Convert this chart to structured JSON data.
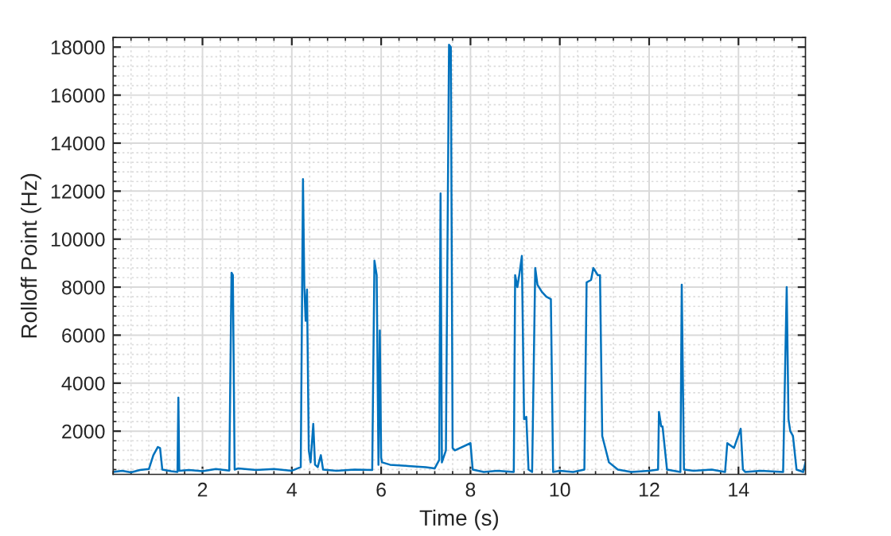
{
  "chart_data": {
    "type": "line",
    "xlabel": "Time (s)",
    "ylabel": "Rolloff Point (Hz)",
    "xlim": [
      0,
      15.5
    ],
    "ylim": [
      200,
      18400
    ],
    "xticks": [
      2,
      4,
      6,
      8,
      10,
      12,
      14
    ],
    "yticks": [
      2000,
      4000,
      6000,
      8000,
      10000,
      12000,
      14000,
      16000,
      18000
    ],
    "grid": true,
    "line_style": "solid",
    "marker": "none",
    "series": [
      {
        "color": "#0072bd",
        "x": [
          0,
          0.2,
          0.4,
          0.6,
          0.8,
          0.9,
          1.0,
          1.05,
          1.1,
          1.3,
          1.44,
          1.46,
          1.48,
          1.7,
          2.0,
          2.3,
          2.6,
          2.65,
          2.68,
          2.72,
          2.8,
          3.2,
          3.6,
          4.0,
          4.2,
          4.25,
          4.28,
          4.31,
          4.34,
          4.38,
          4.42,
          4.48,
          4.52,
          4.58,
          4.65,
          4.7,
          5.0,
          5.4,
          5.8,
          5.85,
          5.9,
          5.94,
          5.97,
          6.0,
          6.02,
          6.2,
          6.6,
          7.0,
          7.2,
          7.3,
          7.33,
          7.36,
          7.45,
          7.52,
          7.56,
          7.6,
          7.65,
          8.0,
          8.05,
          8.3,
          8.6,
          8.97,
          9.0,
          9.05,
          9.1,
          9.15,
          9.2,
          9.25,
          9.3,
          9.38,
          9.45,
          9.5,
          9.6,
          9.7,
          9.8,
          9.85,
          10.0,
          10.3,
          10.55,
          10.6,
          10.7,
          10.75,
          10.85,
          10.9,
          10.95,
          11.1,
          11.3,
          11.6,
          12.0,
          12.2,
          12.22,
          12.27,
          12.3,
          12.4,
          12.7,
          12.73,
          12.78,
          13.0,
          13.4,
          13.7,
          13.75,
          13.9,
          14.05,
          14.1,
          14.15,
          14.5,
          15.0,
          15.08,
          15.12,
          15.16,
          15.22,
          15.3,
          15.45,
          15.5
        ],
        "values": [
          300,
          350,
          280,
          380,
          420,
          1000,
          1340,
          1300,
          400,
          330,
          300,
          3400,
          350,
          380,
          330,
          420,
          360,
          8600,
          8500,
          400,
          450,
          380,
          420,
          350,
          500,
          12500,
          8000,
          6600,
          7900,
          1200,
          700,
          2300,
          600,
          500,
          1000,
          400,
          350,
          400,
          380,
          9100,
          8500,
          600,
          6200,
          900,
          700,
          600,
          550,
          500,
          450,
          800,
          11900,
          700,
          1200,
          18100,
          18000,
          1300,
          1200,
          1500,
          400,
          300,
          350,
          300,
          8500,
          8000,
          8600,
          9300,
          2500,
          2600,
          400,
          300,
          8800,
          8100,
          7800,
          7600,
          7500,
          300,
          350,
          300,
          400,
          8200,
          8300,
          8800,
          8500,
          8500,
          1800,
          700,
          400,
          300,
          350,
          400,
          2800,
          2200,
          2200,
          400,
          300,
          8100,
          400,
          350,
          400,
          300,
          1500,
          1300,
          2100,
          400,
          300,
          350,
          300,
          8000,
          2500,
          2000,
          1800,
          400,
          300,
          700
        ]
      }
    ]
  }
}
